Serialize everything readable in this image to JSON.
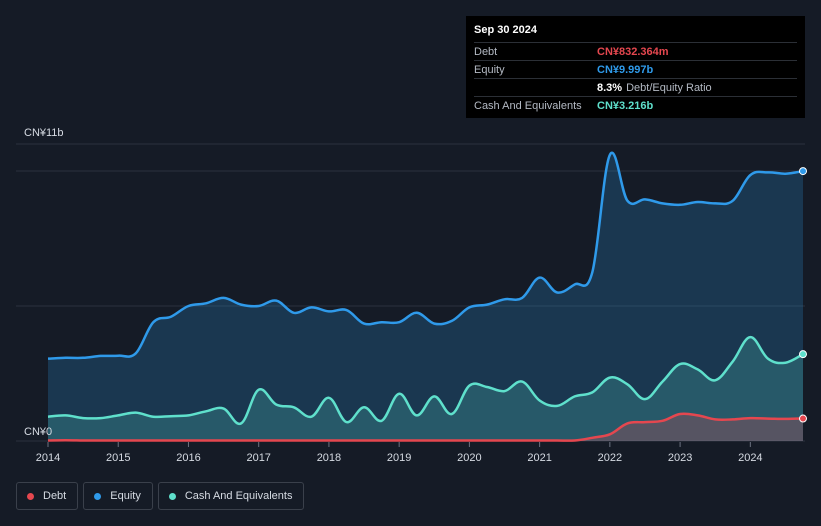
{
  "tooltip": {
    "date": "Sep 30 2024",
    "debt_label": "Debt",
    "debt_value": "CN¥832.364m",
    "equity_label": "Equity",
    "equity_value": "CN¥9.997b",
    "ratio_value": "8.3%",
    "ratio_label": "Debt/Equity Ratio",
    "cash_label": "Cash And Equivalents",
    "cash_value": "CN¥3.216b"
  },
  "legend": {
    "debt": "Debt",
    "equity": "Equity",
    "cash": "Cash And Equivalents"
  },
  "colors": {
    "debt": "#e5474f",
    "equity": "#2f9aea",
    "cash": "#5fe0cc",
    "background": "#151b26"
  },
  "chart_data": {
    "type": "area",
    "ylabel_top": "CN¥11b",
    "ylabel_bottom": "CN¥0",
    "ylim": [
      0,
      11
    ],
    "xlim": [
      2014,
      2024.75
    ],
    "x_ticks": [
      "2014",
      "2015",
      "2016",
      "2017",
      "2018",
      "2019",
      "2020",
      "2021",
      "2022",
      "2023",
      "2024"
    ],
    "grid": true,
    "legend_position": "bottom-left",
    "series": [
      {
        "name": "Equity",
        "points": [
          [
            2014.0,
            3.05
          ],
          [
            2014.25,
            3.08
          ],
          [
            2014.5,
            3.08
          ],
          [
            2014.75,
            3.15
          ],
          [
            2015.0,
            3.16
          ],
          [
            2015.25,
            3.25
          ],
          [
            2015.5,
            4.4
          ],
          [
            2015.75,
            4.6
          ],
          [
            2016.0,
            5.0
          ],
          [
            2016.25,
            5.1
          ],
          [
            2016.5,
            5.3
          ],
          [
            2016.75,
            5.05
          ],
          [
            2017.0,
            5.0
          ],
          [
            2017.25,
            5.2
          ],
          [
            2017.5,
            4.75
          ],
          [
            2017.75,
            4.95
          ],
          [
            2018.0,
            4.8
          ],
          [
            2018.25,
            4.85
          ],
          [
            2018.5,
            4.35
          ],
          [
            2018.75,
            4.4
          ],
          [
            2019.0,
            4.4
          ],
          [
            2019.25,
            4.75
          ],
          [
            2019.5,
            4.35
          ],
          [
            2019.75,
            4.45
          ],
          [
            2020.0,
            4.95
          ],
          [
            2020.25,
            5.05
          ],
          [
            2020.5,
            5.25
          ],
          [
            2020.75,
            5.3
          ],
          [
            2021.0,
            6.05
          ],
          [
            2021.25,
            5.5
          ],
          [
            2021.5,
            5.8
          ],
          [
            2021.75,
            6.25
          ],
          [
            2022.0,
            10.6
          ],
          [
            2022.25,
            8.9
          ],
          [
            2022.5,
            8.95
          ],
          [
            2022.75,
            8.8
          ],
          [
            2023.0,
            8.75
          ],
          [
            2023.25,
            8.85
          ],
          [
            2023.5,
            8.8
          ],
          [
            2023.75,
            8.9
          ],
          [
            2024.0,
            9.85
          ],
          [
            2024.25,
            9.95
          ],
          [
            2024.5,
            9.9
          ],
          [
            2024.75,
            9.997
          ]
        ]
      },
      {
        "name": "Cash And Equivalents",
        "points": [
          [
            2014.0,
            0.9
          ],
          [
            2014.25,
            0.95
          ],
          [
            2014.5,
            0.85
          ],
          [
            2014.75,
            0.85
          ],
          [
            2015.0,
            0.95
          ],
          [
            2015.25,
            1.05
          ],
          [
            2015.5,
            0.9
          ],
          [
            2015.75,
            0.92
          ],
          [
            2016.0,
            0.95
          ],
          [
            2016.25,
            1.1
          ],
          [
            2016.5,
            1.2
          ],
          [
            2016.75,
            0.65
          ],
          [
            2017.0,
            1.9
          ],
          [
            2017.25,
            1.35
          ],
          [
            2017.5,
            1.25
          ],
          [
            2017.75,
            0.9
          ],
          [
            2018.0,
            1.6
          ],
          [
            2018.25,
            0.7
          ],
          [
            2018.5,
            1.25
          ],
          [
            2018.75,
            0.75
          ],
          [
            2019.0,
            1.75
          ],
          [
            2019.25,
            0.95
          ],
          [
            2019.5,
            1.65
          ],
          [
            2019.75,
            1.0
          ],
          [
            2020.0,
            2.05
          ],
          [
            2020.25,
            2.0
          ],
          [
            2020.5,
            1.85
          ],
          [
            2020.75,
            2.2
          ],
          [
            2021.0,
            1.5
          ],
          [
            2021.25,
            1.3
          ],
          [
            2021.5,
            1.65
          ],
          [
            2021.75,
            1.8
          ],
          [
            2022.0,
            2.35
          ],
          [
            2022.25,
            2.1
          ],
          [
            2022.5,
            1.55
          ],
          [
            2022.75,
            2.2
          ],
          [
            2023.0,
            2.85
          ],
          [
            2023.25,
            2.65
          ],
          [
            2023.5,
            2.25
          ],
          [
            2023.75,
            2.95
          ],
          [
            2024.0,
            3.85
          ],
          [
            2024.25,
            3.05
          ],
          [
            2024.5,
            2.9
          ],
          [
            2024.75,
            3.216
          ]
        ]
      },
      {
        "name": "Debt",
        "points": [
          [
            2014.0,
            0.02
          ],
          [
            2014.25,
            0.03
          ],
          [
            2014.5,
            0.02
          ],
          [
            2014.75,
            0.02
          ],
          [
            2015.0,
            0.02
          ],
          [
            2015.25,
            0.02
          ],
          [
            2015.5,
            0.02
          ],
          [
            2015.75,
            0.02
          ],
          [
            2016.0,
            0.02
          ],
          [
            2016.25,
            0.02
          ],
          [
            2016.5,
            0.02
          ],
          [
            2016.75,
            0.02
          ],
          [
            2017.0,
            0.02
          ],
          [
            2017.25,
            0.02
          ],
          [
            2017.5,
            0.02
          ],
          [
            2017.75,
            0.02
          ],
          [
            2018.0,
            0.02
          ],
          [
            2018.25,
            0.02
          ],
          [
            2018.5,
            0.02
          ],
          [
            2018.75,
            0.02
          ],
          [
            2019.0,
            0.02
          ],
          [
            2019.25,
            0.02
          ],
          [
            2019.5,
            0.02
          ],
          [
            2019.75,
            0.02
          ],
          [
            2020.0,
            0.02
          ],
          [
            2020.25,
            0.02
          ],
          [
            2020.5,
            0.02
          ],
          [
            2020.75,
            0.02
          ],
          [
            2021.0,
            0.02
          ],
          [
            2021.25,
            0.02
          ],
          [
            2021.5,
            0.02
          ],
          [
            2021.75,
            0.12
          ],
          [
            2022.0,
            0.25
          ],
          [
            2022.25,
            0.65
          ],
          [
            2022.5,
            0.7
          ],
          [
            2022.75,
            0.75
          ],
          [
            2023.0,
            1.0
          ],
          [
            2023.25,
            0.95
          ],
          [
            2023.5,
            0.8
          ],
          [
            2023.75,
            0.8
          ],
          [
            2024.0,
            0.85
          ],
          [
            2024.25,
            0.83
          ],
          [
            2024.5,
            0.82
          ],
          [
            2024.75,
            0.832
          ]
        ]
      }
    ]
  }
}
